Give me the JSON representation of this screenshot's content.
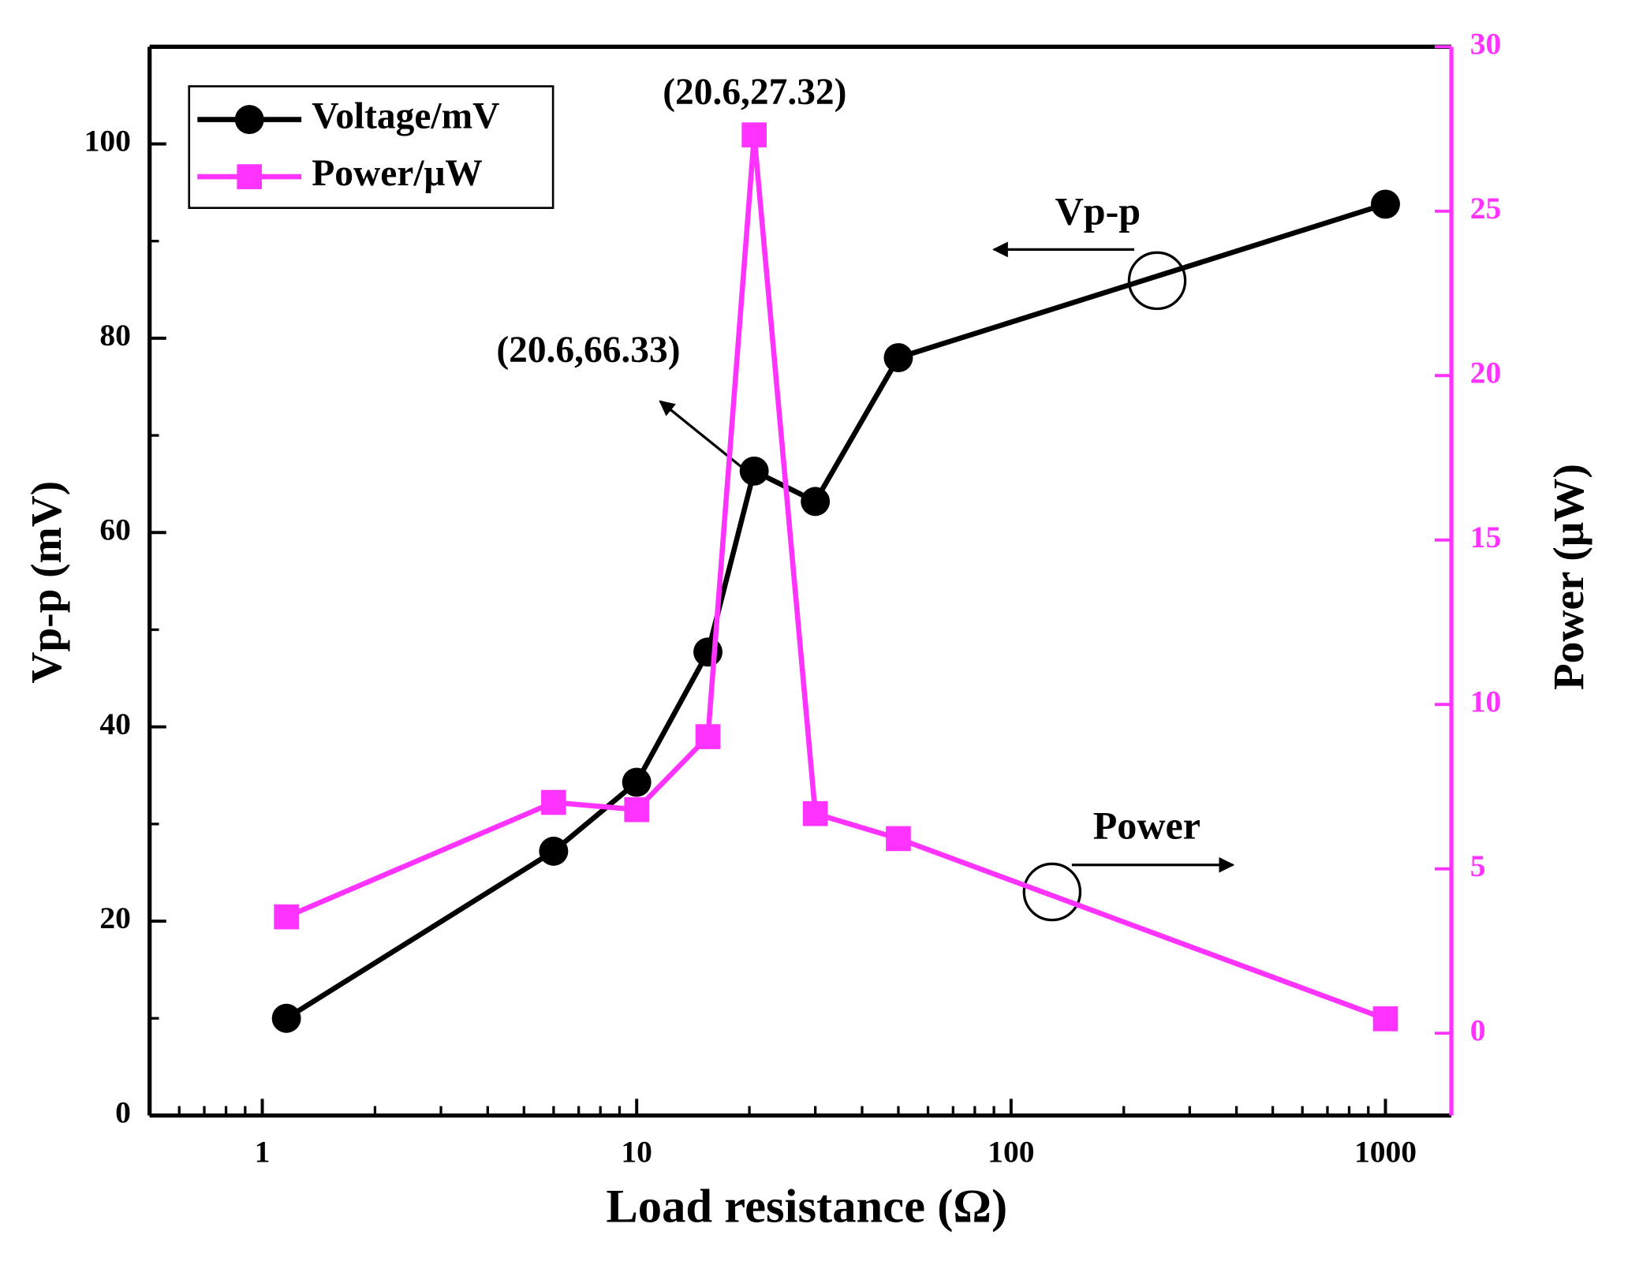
{
  "chart_data": {
    "type": "line",
    "x_label": "Load resistance (Ω)",
    "y_label": "Vp-p (mV)",
    "y2_label": "Power (μW)",
    "x": [
      1.16,
      6,
      10,
      15.5,
      20.6,
      30,
      50,
      1000
    ],
    "series": [
      {
        "name": "Voltage/mV",
        "color": "#000000",
        "marker": "circle",
        "values": [
          10,
          27.2,
          34.3,
          47.7,
          66.33,
          63.2,
          78,
          93.8
        ]
      },
      {
        "name": "Power/μW",
        "color": "#ff33ff",
        "marker": "square",
        "axis": "y2",
        "values": [
          3.54,
          7.02,
          6.8,
          9.02,
          27.32,
          6.68,
          5.92,
          0.44
        ]
      }
    ],
    "xscale": "log",
    "xlim": [
      0.5,
      1500
    ],
    "xticks": [
      1,
      10,
      100,
      1000
    ],
    "ylim": [
      0,
      110
    ],
    "yticks": [
      0,
      20,
      40,
      60,
      80,
      100
    ],
    "y2lim": [
      -2.5,
      30
    ],
    "y2ticks": [
      0,
      5,
      10,
      15,
      20,
      25,
      30
    ],
    "legend": "upper left",
    "annotations": [
      "(20.6,27.32)",
      "(20.6,66.33)",
      "Vp-p",
      "Power"
    ]
  }
}
